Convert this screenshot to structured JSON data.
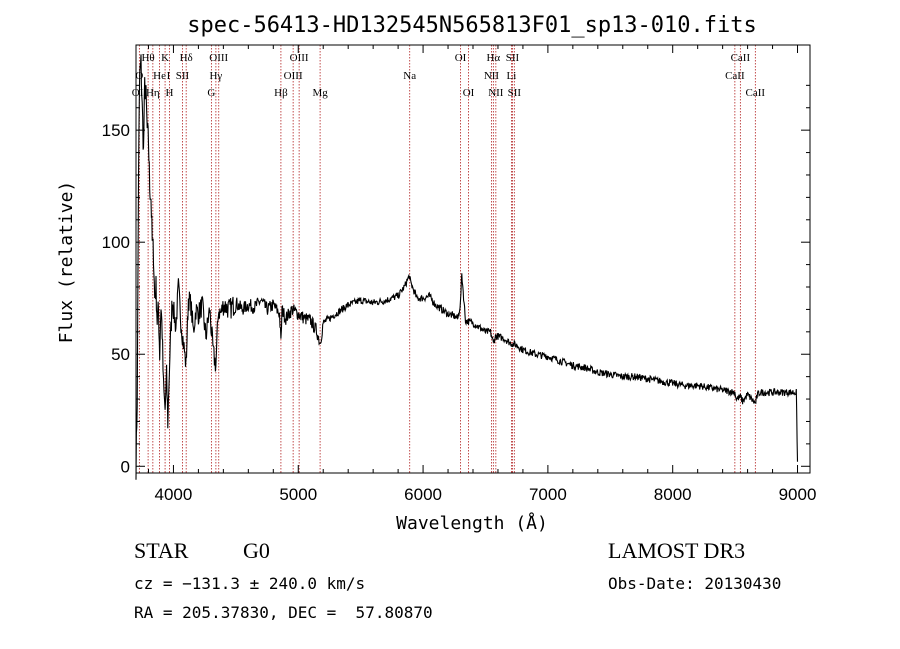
{
  "chart_data": {
    "type": "line",
    "title": "spec-56413-HD132545N565813F01_sp13-010.fits",
    "xlabel": "Wavelength (Å)",
    "ylabel": "Flux (relative)",
    "xlim": [
      3700,
      9100
    ],
    "ylim": [
      -3,
      188
    ],
    "x_ticks": [
      4000,
      5000,
      6000,
      7000,
      8000,
      9000
    ],
    "y_ticks": [
      0,
      50,
      100,
      150
    ],
    "grid": false,
    "series": [
      {
        "name": "spectrum",
        "x": [
          3700,
          3710,
          3720,
          3730,
          3740,
          3750,
          3760,
          3770,
          3780,
          3790,
          3800,
          3810,
          3820,
          3830,
          3840,
          3850,
          3860,
          3870,
          3880,
          3890,
          3900,
          3910,
          3920,
          3933,
          3945,
          3955,
          3968,
          3980,
          3990,
          4000,
          4020,
          4040,
          4060,
          4080,
          4101,
          4120,
          4140,
          4160,
          4180,
          4200,
          4230,
          4260,
          4290,
          4320,
          4340,
          4360,
          4380,
          4400,
          4450,
          4500,
          4550,
          4600,
          4650,
          4700,
          4750,
          4800,
          4850,
          4861,
          4870,
          4900,
          4950,
          5000,
          5050,
          5100,
          5150,
          5175,
          5200,
          5300,
          5400,
          5500,
          5600,
          5700,
          5800,
          5850,
          5890,
          5900,
          5950,
          6000,
          6050,
          6100,
          6150,
          6200,
          6250,
          6280,
          6300,
          6310,
          6340,
          6400,
          6450,
          6500,
          6540,
          6563,
          6580,
          6600,
          6650,
          6700,
          6750,
          6800,
          6900,
          7000,
          7100,
          7200,
          7300,
          7400,
          7500,
          7600,
          7700,
          7800,
          7900,
          8000,
          8100,
          8200,
          8300,
          8400,
          8498,
          8510,
          8542,
          8560,
          8600,
          8662,
          8680,
          8700,
          8800,
          8900,
          8990,
          9000
        ],
        "values": [
          0,
          30,
          130,
          175,
          180,
          160,
          140,
          170,
          165,
          150,
          145,
          125,
          120,
          100,
          95,
          75,
          80,
          65,
          70,
          50,
          72,
          60,
          35,
          25,
          40,
          20,
          45,
          60,
          75,
          70,
          62,
          80,
          65,
          55,
          45,
          75,
          72,
          60,
          70,
          68,
          72,
          58,
          70,
          50,
          45,
          70,
          68,
          72,
          70,
          73,
          70,
          72,
          71,
          74,
          70,
          72,
          68,
          55,
          70,
          66,
          70,
          68,
          66,
          65,
          60,
          55,
          64,
          68,
          72,
          74,
          73,
          74,
          76,
          80,
          85,
          82,
          75,
          75,
          76,
          72,
          70,
          68,
          67,
          66,
          73,
          86,
          65,
          64,
          62,
          60,
          60,
          55,
          58,
          58,
          57,
          55,
          54,
          52,
          50,
          49,
          47,
          45,
          44,
          42,
          41,
          40,
          40,
          39,
          38,
          37,
          36,
          36,
          35,
          34,
          33,
          30,
          31,
          29,
          32,
          28,
          32,
          33,
          33,
          33,
          33,
          2
        ]
      }
    ],
    "line_markers": [
      {
        "label": "O",
        "wavelength": 3727,
        "row": 2
      },
      {
        "label": "OII",
        "wavelength": 3727,
        "row": 3
      },
      {
        "label": "Hθ",
        "wavelength": 3797,
        "row": 1
      },
      {
        "label": "Hη",
        "wavelength": 3835,
        "row": 3
      },
      {
        "label": "He",
        "wavelength": 3889,
        "row": 2
      },
      {
        "label": "K",
        "wavelength": 3933,
        "row": 1
      },
      {
        "label": "H",
        "wavelength": 3968,
        "row": 3
      },
      {
        "label": "I",
        "wavelength": 3960,
        "row": 2
      },
      {
        "label": "SII",
        "wavelength": 4072,
        "row": 2
      },
      {
        "label": "Hδ",
        "wavelength": 4102,
        "row": 1
      },
      {
        "label": "OIII",
        "wavelength": 4363,
        "row": 1
      },
      {
        "label": "Hγ",
        "wavelength": 4340,
        "row": 2
      },
      {
        "label": "G",
        "wavelength": 4304,
        "row": 3
      },
      {
        "label": "Hβ",
        "wavelength": 4861,
        "row": 3
      },
      {
        "label": "OIII",
        "wavelength": 4959,
        "row": 2
      },
      {
        "label": "OIII",
        "wavelength": 5007,
        "row": 1
      },
      {
        "label": "Mg",
        "wavelength": 5175,
        "row": 3
      },
      {
        "label": "Na",
        "wavelength": 5893,
        "row": 2
      },
      {
        "label": "OI",
        "wavelength": 6300,
        "row": 1
      },
      {
        "label": "OI",
        "wavelength": 6364,
        "row": 3
      },
      {
        "label": "Hα",
        "wavelength": 6563,
        "row": 1
      },
      {
        "label": "SII",
        "wavelength": 6716,
        "row": 1
      },
      {
        "label": "NII",
        "wavelength": 6548,
        "row": 2
      },
      {
        "label": "Li",
        "wavelength": 6708,
        "row": 2
      },
      {
        "label": "NII",
        "wavelength": 6583,
        "row": 3
      },
      {
        "label": "SII",
        "wavelength": 6731,
        "row": 3
      },
      {
        "label": "CaII",
        "wavelength": 8542,
        "row": 1
      },
      {
        "label": "CaII",
        "wavelength": 8498,
        "row": 2
      },
      {
        "label": "CaII",
        "wavelength": 8662,
        "row": 3
      }
    ],
    "marker_lines": [
      3727,
      3797,
      3835,
      3889,
      3933,
      3968,
      4072,
      4102,
      4304,
      4340,
      4363,
      4861,
      4959,
      5007,
      5175,
      5893,
      6300,
      6364,
      6548,
      6563,
      6583,
      6708,
      6716,
      6731,
      8498,
      8542,
      8662
    ],
    "colors": {
      "spectrum": "#000000",
      "marker_line": "#b22222",
      "text": "#000000"
    }
  },
  "info": {
    "object_class": "STAR",
    "subclass": "G0",
    "survey": "LAMOST DR3",
    "cz": "cz = −131.3 ± 240.0 km/s",
    "obs_date": "Obs-Date: 20130430",
    "coords": "RA = 205.37830, DEC =  57.80870"
  }
}
